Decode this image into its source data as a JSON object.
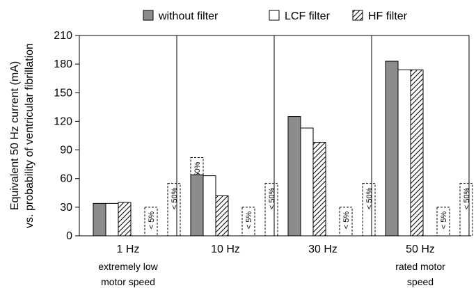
{
  "chart_data": {
    "type": "bar",
    "ylabel": "Equivalent 50 Hz current (mA)",
    "ylabel2": "vs. probability of ventricular fibrillation",
    "ylim": [
      0,
      210
    ],
    "yticks": [
      0,
      30,
      60,
      90,
      120,
      150,
      180,
      210
    ],
    "grid": "vertical category separators",
    "legend_position": "top",
    "categories": [
      {
        "label": "1 Hz",
        "sublabel": [
          "extremely low",
          "motor speed"
        ]
      },
      {
        "label": "10 Hz",
        "sublabel": []
      },
      {
        "label": "30 Hz",
        "sublabel": []
      },
      {
        "label": "50 Hz",
        "sublabel": [
          "rated motor",
          "speed"
        ]
      }
    ],
    "series": [
      {
        "name": "without filter",
        "style": "solid",
        "color": "#8c8c8c",
        "values": [
          34,
          64,
          125,
          183
        ]
      },
      {
        "name": "LCF filter",
        "style": "white",
        "color": "#ffffff",
        "values": [
          34,
          63,
          113,
          174
        ]
      },
      {
        "name": "HF filter",
        "style": "hatched",
        "color": "#ffffff",
        "values": [
          35,
          42,
          98,
          174
        ]
      }
    ],
    "thresholds": [
      {
        "label": "< 5%",
        "value": 30
      },
      {
        "label": "< 50%",
        "value": 55
      },
      {
        "label": "> 50%",
        "value": 82
      }
    ]
  }
}
